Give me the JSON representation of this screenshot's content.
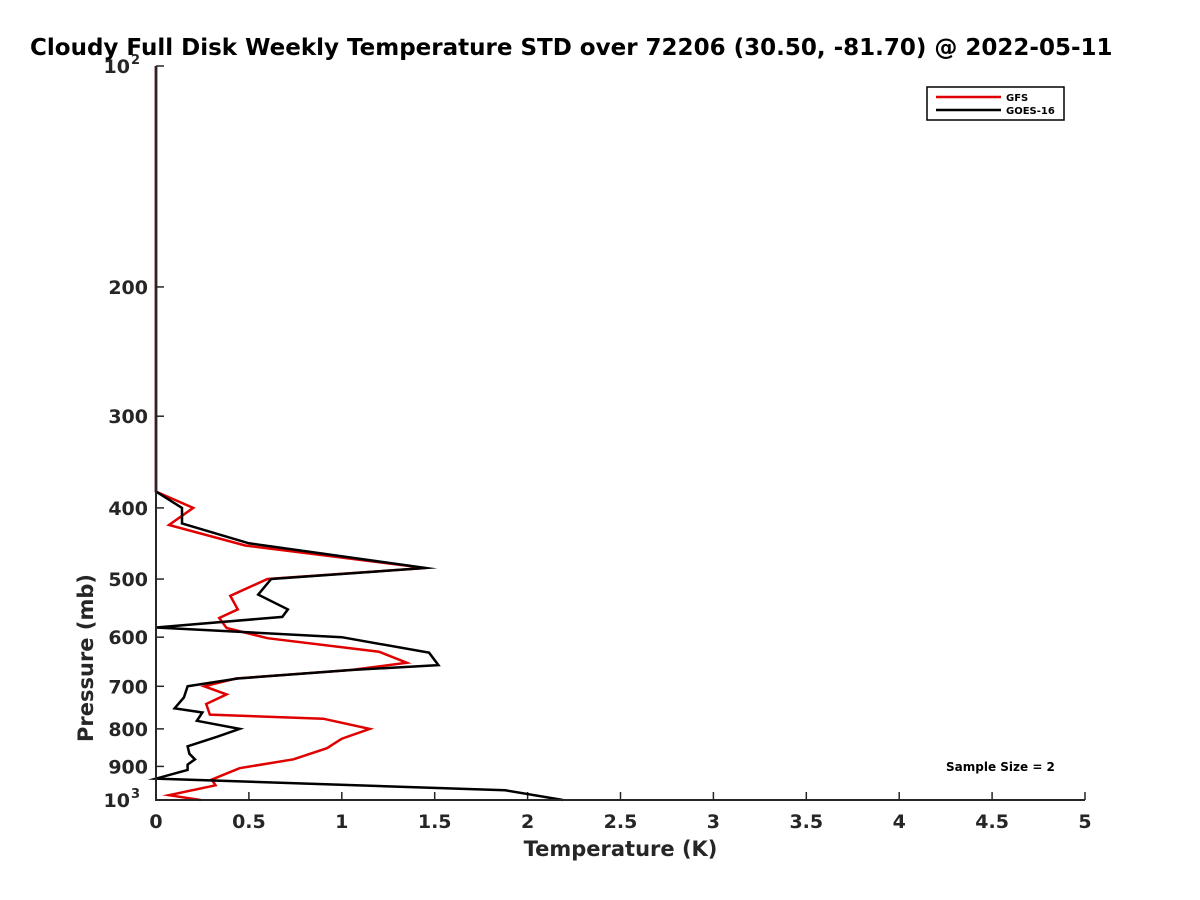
{
  "chart_data": {
    "type": "line",
    "title": "Cloudy Full Disk Weekly Temperature STD over 72206 (30.50, -81.70) @ 2022-05-11",
    "xlabel": "Temperature (K)",
    "ylabel": "Pressure (mb)",
    "xlim": [
      0,
      5
    ],
    "ylim": [
      100,
      1000
    ],
    "y_scale": "log",
    "y_direction": "reversed",
    "x_ticks": [
      0,
      0.5,
      1,
      1.5,
      2,
      2.5,
      3,
      3.5,
      4,
      4.5,
      5
    ],
    "x_tick_labels": [
      "0",
      "0.5",
      "1",
      "1.5",
      "2",
      "2.5",
      "3",
      "3.5",
      "4",
      "4.5",
      "5"
    ],
    "y_ticks": [
      100,
      200,
      300,
      400,
      500,
      600,
      700,
      800,
      900,
      1000
    ],
    "y_tick_labels": [
      {
        "base": "10",
        "exp": "2"
      },
      {
        "base": "200",
        "exp": ""
      },
      {
        "base": "300",
        "exp": ""
      },
      {
        "base": "400",
        "exp": ""
      },
      {
        "base": "500",
        "exp": ""
      },
      {
        "base": "600",
        "exp": ""
      },
      {
        "base": "700",
        "exp": ""
      },
      {
        "base": "800",
        "exp": ""
      },
      {
        "base": "900",
        "exp": ""
      },
      {
        "base": "10",
        "exp": "3"
      }
    ],
    "legend_position": "top-right",
    "annotation": "Sample Size = 2",
    "series": [
      {
        "name": "GFS",
        "color": "#e00000",
        "points": [
          [
            0.0,
            100
          ],
          [
            0.0,
            380
          ],
          [
            0.2,
            400
          ],
          [
            0.07,
            422
          ],
          [
            0.48,
            450
          ],
          [
            1.45,
            483
          ],
          [
            0.6,
            500
          ],
          [
            0.4,
            527
          ],
          [
            0.44,
            550
          ],
          [
            0.34,
            565
          ],
          [
            0.38,
            583
          ],
          [
            0.6,
            602
          ],
          [
            1.2,
            628
          ],
          [
            1.35,
            650
          ],
          [
            1.05,
            665
          ],
          [
            0.43,
            683
          ],
          [
            0.26,
            700
          ],
          [
            0.38,
            718
          ],
          [
            0.27,
            740
          ],
          [
            0.29,
            765
          ],
          [
            0.9,
            775
          ],
          [
            1.15,
            800
          ],
          [
            1.0,
            825
          ],
          [
            0.92,
            850
          ],
          [
            0.74,
            880
          ],
          [
            0.45,
            905
          ],
          [
            0.3,
            938
          ],
          [
            0.32,
            955
          ],
          [
            0.07,
            985
          ],
          [
            0.24,
            1000
          ]
        ]
      },
      {
        "name": "GOES-16",
        "color": "#000000",
        "points": [
          [
            0.0,
            100
          ],
          [
            0.0,
            380
          ],
          [
            0.14,
            400
          ],
          [
            0.14,
            410
          ],
          [
            0.14,
            420
          ],
          [
            0.5,
            447
          ],
          [
            1.45,
            483
          ],
          [
            0.62,
            500
          ],
          [
            0.55,
            525
          ],
          [
            0.71,
            550
          ],
          [
            0.68,
            563
          ],
          [
            0.0,
            582
          ],
          [
            1.0,
            600
          ],
          [
            1.47,
            630
          ],
          [
            1.52,
            655
          ],
          [
            1.05,
            665
          ],
          [
            0.44,
            683
          ],
          [
            0.17,
            700
          ],
          [
            0.15,
            725
          ],
          [
            0.1,
            750
          ],
          [
            0.25,
            760
          ],
          [
            0.22,
            780
          ],
          [
            0.45,
            800
          ],
          [
            0.33,
            820
          ],
          [
            0.17,
            845
          ],
          [
            0.18,
            865
          ],
          [
            0.21,
            880
          ],
          [
            0.17,
            895
          ],
          [
            0.17,
            910
          ],
          [
            0.0,
            935
          ],
          [
            1.88,
            970
          ],
          [
            2.19,
            1000
          ]
        ]
      }
    ]
  }
}
